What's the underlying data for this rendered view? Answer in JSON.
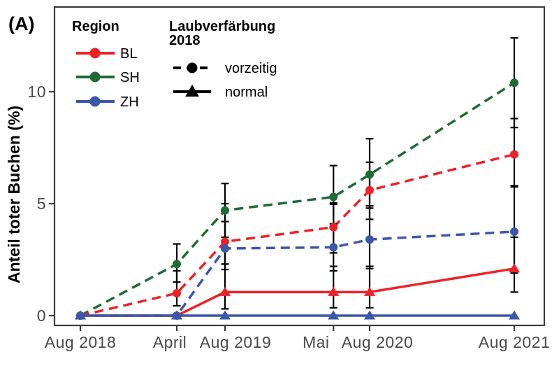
{
  "figure": {
    "panel_label": "(A)",
    "background": "#ffffff"
  },
  "axes": {
    "ylabel": "Anteil toter Buchen (%)",
    "xlabel": "",
    "axis_color": "#3c3c3c",
    "tick_text_color": "#4a4a4a",
    "y_ticks": [
      {
        "label": "0",
        "value": 0
      },
      {
        "label": "5",
        "value": 5
      },
      {
        "label": "10",
        "value": 10
      }
    ],
    "x_ticks": [
      {
        "label": "Aug 2018",
        "month": 0,
        "dx": 0
      },
      {
        "label": "April",
        "month": 8,
        "dx": -10
      },
      {
        "label": "Aug 2019",
        "month": 12,
        "dx": 15
      },
      {
        "label": "Mai",
        "month": 21,
        "dx": -25
      },
      {
        "label": "Aug 2020",
        "month": 24,
        "dx": 11
      },
      {
        "label": "Aug 2021",
        "month": 36,
        "dx": 0
      }
    ]
  },
  "legend": {
    "region": {
      "title": "Region",
      "items": [
        {
          "label": "BL",
          "color": "#ec2227"
        },
        {
          "label": "SH",
          "color": "#1e6b35"
        },
        {
          "label": "ZH",
          "color": "#3a57a9"
        }
      ]
    },
    "laub": {
      "title_line1": "Laubverfärbung",
      "title_line2": "2018",
      "color": "#000000",
      "items": [
        {
          "label": "vorzeitig",
          "linestyle": "dashed",
          "marker": "circle"
        },
        {
          "label": "normal",
          "linestyle": "solid",
          "marker": "triangle"
        }
      ]
    }
  },
  "chart_data": {
    "type": "line",
    "title": "",
    "xlabel": "",
    "ylabel": "Anteil toter Buchen (%)",
    "x_categories": [
      "Aug 2018",
      "April",
      "Aug 2019",
      "Mai",
      "Aug 2020",
      "Aug 2021"
    ],
    "x_months": [
      0,
      8,
      12,
      21,
      24,
      36
    ],
    "ylim": [
      -0.45,
      13.8
    ],
    "y_tick_values": [
      0,
      5,
      10
    ],
    "grid": false,
    "legend_position": "top-inside",
    "series": [
      {
        "id": "SH-vorzeitig",
        "name": "SH vorzeitig",
        "region": "SH",
        "laub": "vorzeitig",
        "color": "#1e6b35",
        "dash": true,
        "marker": "circle",
        "values": [
          0,
          2.3,
          4.7,
          5.3,
          6.3,
          10.4
        ],
        "err": [
          null,
          [
            1.5,
            3.2
          ],
          [
            3.5,
            5.9
          ],
          [
            4.1,
            6.7
          ],
          [
            4.8,
            7.9
          ],
          [
            8.4,
            12.4
          ]
        ]
      },
      {
        "id": "BL-vorzeitig",
        "name": "BL vorzeitig",
        "region": "BL",
        "laub": "vorzeitig",
        "color": "#ec2227",
        "dash": true,
        "marker": "circle",
        "values": [
          0,
          1.0,
          3.3,
          3.95,
          5.6,
          7.2
        ],
        "err": [
          null,
          [
            0.44,
            2.0
          ],
          [
            2.3,
            5.0
          ],
          [
            2.8,
            5.03
          ],
          [
            4.3,
            6.85
          ],
          [
            5.75,
            8.8
          ]
        ]
      },
      {
        "id": "ZH-vorzeitig",
        "name": "ZH vorzeitig",
        "region": "ZH",
        "laub": "vorzeitig",
        "color": "#3a57a9",
        "dash": true,
        "marker": "circle",
        "values": [
          0,
          0,
          3.0,
          3.05,
          3.4,
          3.75
        ],
        "err": [
          null,
          null,
          [
            2.06,
            4.2
          ],
          [
            2.0,
            4.97
          ],
          [
            2.1,
            4.9
          ],
          [
            1.9,
            5.8
          ]
        ]
      },
      {
        "id": "BL-normal",
        "name": "BL normal",
        "region": "BL",
        "laub": "normal",
        "color": "#ec2227",
        "dash": false,
        "marker": "triangle",
        "values": [
          0,
          0,
          1.05,
          1.05,
          1.05,
          2.1
        ],
        "err": [
          null,
          null,
          [
            0.3,
            2.3
          ],
          [
            0.35,
            2.2
          ],
          [
            0.35,
            2.2
          ],
          [
            1.05,
            3.5
          ]
        ]
      },
      {
        "id": "ZH-normal",
        "name": "ZH normal",
        "region": "ZH",
        "laub": "normal",
        "color": "#3a57a9",
        "dash": false,
        "marker": "triangle",
        "values": [
          0,
          0,
          0,
          0,
          0,
          0
        ],
        "err": [
          null,
          null,
          null,
          null,
          null,
          null
        ]
      }
    ]
  }
}
